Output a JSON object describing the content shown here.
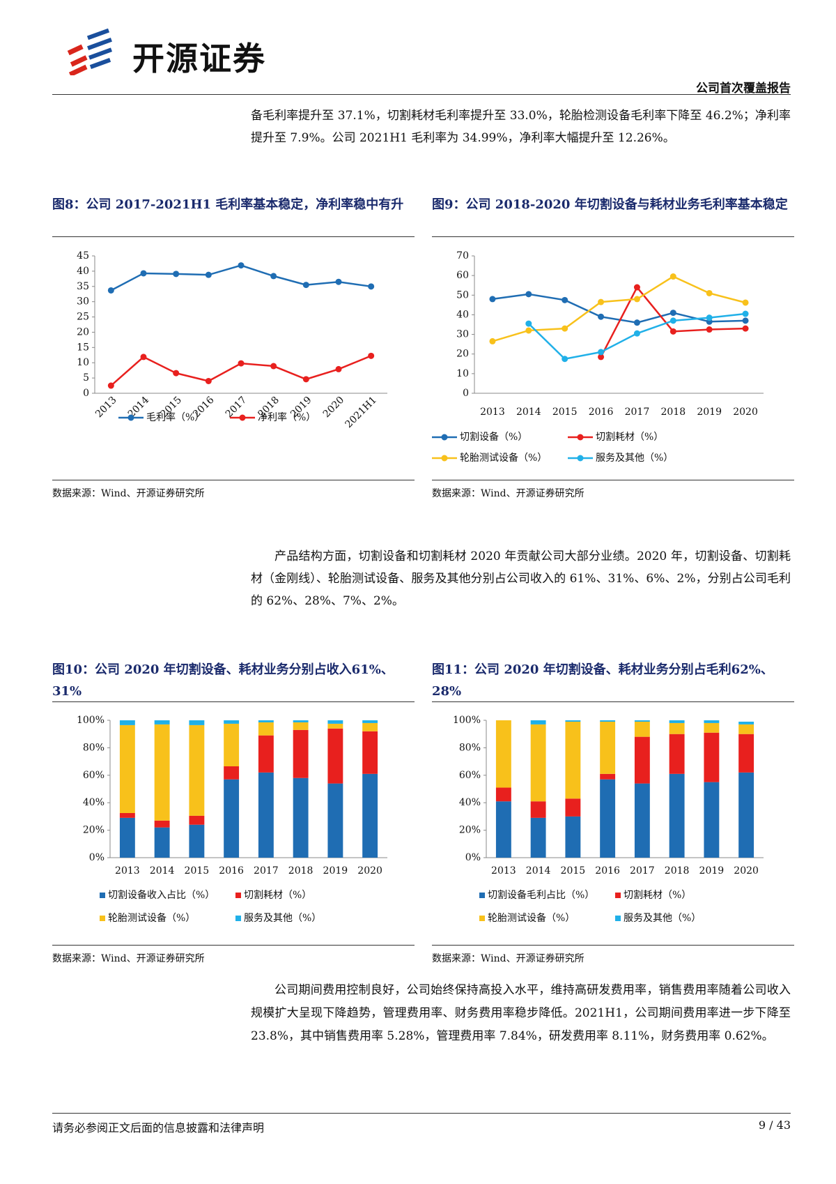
{
  "header": {
    "brand": "开源证券",
    "report_type": "公司首次覆盖报告"
  },
  "paragraphs": [
    "备毛利率提升至 37.1%，切割耗材毛利率提升至 33.0%，轮胎检测设备毛利率下降至 46.2%；净利率提升至 7.9%。公司 2021H1 毛利率为 34.99%，净利率大幅提升至 12.26%。",
    "产品结构方面，切割设备和切割耗材 2020 年贡献公司大部分业绩。2020 年，切割设备、切割耗材（金刚线）、轮胎测试设备、服务及其他分别占公司收入的 61%、31%、6%、2%，分别占公司毛利的 62%、28%、7%、2%。",
    "公司期间费用控制良好，公司始终保持高投入水平，维持高研发费用率，销售费用率随着公司收入规模扩大呈现下降趋势，管理费用率、财务费用率稳步降低。2021H1，公司期间费用率进一步下降至 23.8%，其中销售费用率 5.28%，管理费用率 7.84%，研发费用率 8.11%，财务费用率 0.62%。"
  ],
  "chart_data": [
    {
      "type": "line",
      "title": "图8：公司 2017-2021H1 毛利率基本稳定，净利率稳中有升",
      "source": "数据来源：Wind、开源证券研究所",
      "categories": [
        "2013",
        "2014",
        "2015",
        "2016",
        "2017",
        "2018",
        "2019",
        "2020",
        "2021H1"
      ],
      "series": [
        {
          "name": "毛利率（%）",
          "color": "#1f6db3",
          "values": [
            33.7,
            39.3,
            39.1,
            38.8,
            41.9,
            38.4,
            35.5,
            36.5,
            34.99
          ]
        },
        {
          "name": "净利率（%）",
          "color": "#e8201e",
          "values": [
            2.5,
            11.9,
            6.6,
            4.0,
            9.8,
            8.9,
            4.6,
            7.9,
            12.26
          ]
        }
      ],
      "ylim": [
        0,
        45
      ],
      "yticks": [
        0,
        5,
        10,
        15,
        20,
        25,
        30,
        35,
        40,
        45
      ]
    },
    {
      "type": "line",
      "title": "图9：公司 2018-2020 年切割设备与耗材业务毛利率基本稳定",
      "source": "数据来源：Wind、开源证券研究所",
      "categories": [
        "2013",
        "2014",
        "2015",
        "2016",
        "2017",
        "2018",
        "2019",
        "2020"
      ],
      "series": [
        {
          "name": "切割设备（%）",
          "color": "#1f6db3",
          "values": [
            48,
            50.5,
            47.5,
            39,
            36,
            41,
            36.5,
            37
          ]
        },
        {
          "name": "切割耗材（%）",
          "color": "#e8201e",
          "values": [
            null,
            null,
            null,
            18.5,
            54,
            31.5,
            32.5,
            33.0
          ]
        },
        {
          "name": "轮胎测试设备（%）",
          "color": "#f8c11b",
          "values": [
            26.5,
            32,
            33,
            46.5,
            48,
            59.5,
            51,
            46.2
          ]
        },
        {
          "name": "服务及其他（%）",
          "color": "#20b0e8",
          "values": [
            null,
            35.5,
            17.5,
            21,
            30.5,
            37,
            38.5,
            40.5
          ]
        }
      ],
      "ylim": [
        0,
        70
      ],
      "yticks": [
        0,
        10,
        20,
        30,
        40,
        50,
        60,
        70
      ]
    },
    {
      "type": "stacked_bar",
      "title": "图10：公司 2020 年切割设备、耗材业务分别占收入61%、31%",
      "source": "数据来源：Wind、开源证券研究所",
      "categories": [
        "2013",
        "2014",
        "2015",
        "2016",
        "2017",
        "2018",
        "2019",
        "2020"
      ],
      "series": [
        {
          "name": "切割设备收入占比（%）",
          "color": "#1f6db3",
          "values": [
            29,
            22,
            24,
            57,
            62,
            58,
            54,
            61
          ]
        },
        {
          "name": "切割耗材（%）",
          "color": "#e8201e",
          "values": [
            3.5,
            5,
            6.5,
            9.5,
            27,
            35,
            40,
            31
          ]
        },
        {
          "name": "轮胎测试设备（%）",
          "color": "#f8c11b",
          "values": [
            64,
            70,
            66,
            31,
            9.5,
            5.5,
            3.5,
            6
          ]
        },
        {
          "name": "服务及其他（%）",
          "color": "#20b0e8",
          "values": [
            3.5,
            3,
            3.5,
            2.5,
            1.5,
            1.5,
            2.5,
            2
          ]
        }
      ],
      "ylim": [
        0,
        100
      ],
      "yticks": [
        {
          "value": 0,
          "label": "0%"
        },
        {
          "value": 20,
          "label": "20%"
        },
        {
          "value": 40,
          "label": "40%"
        },
        {
          "value": 60,
          "label": "60%"
        },
        {
          "value": 80,
          "label": "80%"
        },
        {
          "value": 100,
          "label": "100%"
        }
      ]
    },
    {
      "type": "stacked_bar",
      "title": "图11：公司 2020 年切割设备、耗材业务分别占毛利62%、28%",
      "source": "数据来源：Wind、开源证券研究所",
      "categories": [
        "2013",
        "2014",
        "2015",
        "2016",
        "2017",
        "2018",
        "2019",
        "2020"
      ],
      "series": [
        {
          "name": "切割设备毛利占比（%）",
          "color": "#1f6db3",
          "values": [
            41,
            29,
            30,
            57,
            54,
            61,
            55,
            62
          ]
        },
        {
          "name": "切割耗材（%）",
          "color": "#e8201e",
          "values": [
            10,
            12,
            13,
            4,
            34,
            29,
            36,
            28
          ]
        },
        {
          "name": "轮胎测试设备（%）",
          "color": "#f8c11b",
          "values": [
            49,
            56,
            56,
            38,
            11,
            8,
            7,
            7
          ]
        },
        {
          "name": "服务及其他（%）",
          "color": "#20b0e8",
          "values": [
            0,
            3,
            1,
            1,
            1,
            2,
            2,
            2
          ]
        }
      ],
      "ylim": [
        0,
        100
      ],
      "yticks": [
        {
          "value": 0,
          "label": "0%"
        },
        {
          "value": 20,
          "label": "20%"
        },
        {
          "value": 40,
          "label": "40%"
        },
        {
          "value": 60,
          "label": "60%"
        },
        {
          "value": 80,
          "label": "80%"
        },
        {
          "value": 100,
          "label": "100%"
        }
      ]
    }
  ],
  "footer": {
    "disclaimer": "请务必参阅正文后面的信息披露和法律声明",
    "page": "9 / 43"
  }
}
